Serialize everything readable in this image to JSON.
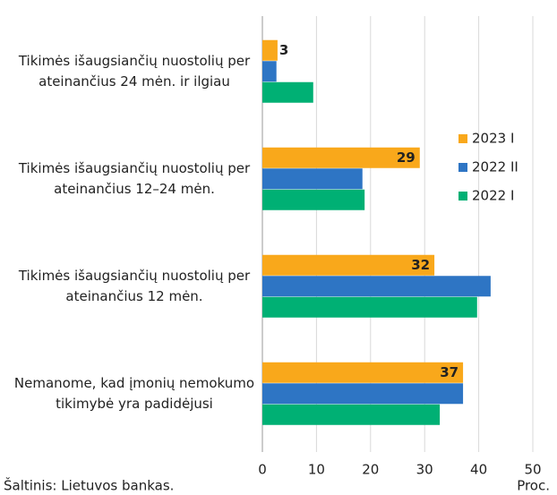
{
  "chart_data": {
    "type": "hbar",
    "categories": [
      "Tikimės išaugsiančių nuostolių per ateinančius 24 mėn. ir ilgiau",
      "Tikimės išaugsiančių nuostolių per ateinančius 12–24 mėn.",
      "Tikimės išaugsiančių nuostolių per ateinančius 12 mėn.",
      "Nemanome, kad įmonių nemokumo tikimybė yra padidėjusi"
    ],
    "series": [
      {
        "name": "2023 I",
        "color": "#f9a81b",
        "values": [
          2.8,
          29.1,
          31.8,
          37.1
        ],
        "value_labels": [
          "3",
          "29",
          "32",
          "37"
        ]
      },
      {
        "name": "2022 II",
        "color": "#2e75c4",
        "values": [
          2.6,
          18.5,
          42.2,
          37.1
        ]
      },
      {
        "name": "2022 I",
        "color": "#00b074",
        "values": [
          9.4,
          18.9,
          39.7,
          32.8
        ]
      }
    ],
    "xlim": [
      0,
      50
    ],
    "xticks": [
      0,
      10,
      20,
      30,
      40,
      50
    ],
    "grid": true,
    "x_label": "Proc.",
    "source": "Šaltinis: Lietuvos bankas.",
    "legend": "right"
  }
}
